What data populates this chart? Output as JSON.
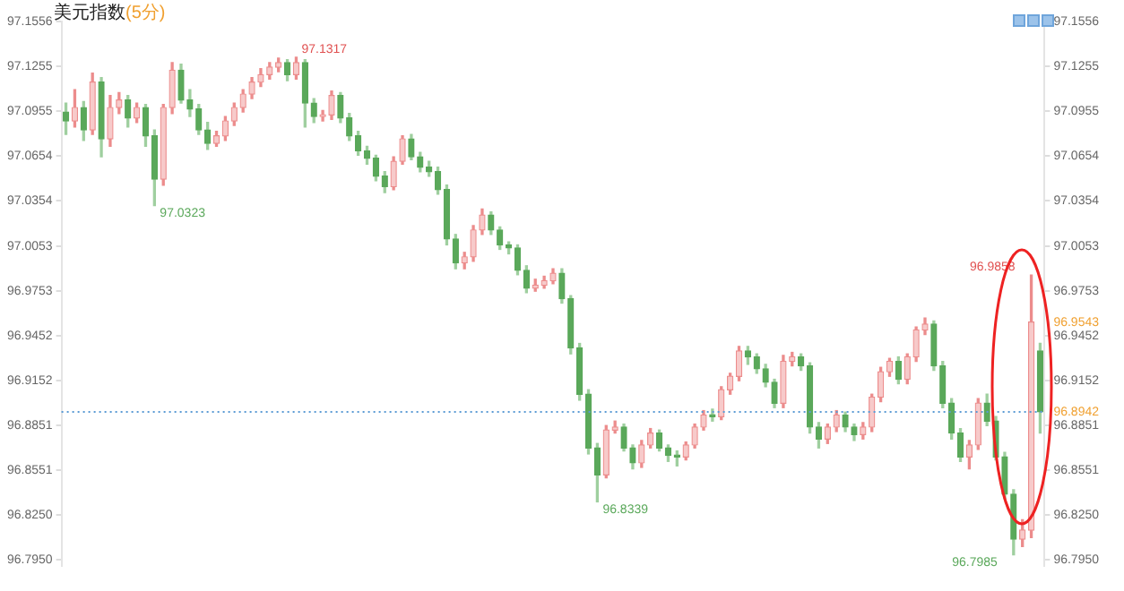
{
  "chart_data": {
    "type": "candlestick",
    "title": "美元指数",
    "subtitle": "(5分)",
    "categories": [
      null,
      null,
      null,
      null,
      null,
      null,
      null,
      null,
      null,
      null,
      null,
      null,
      null,
      null,
      null,
      null,
      null,
      null,
      null,
      null,
      null,
      null,
      null,
      null,
      null,
      null,
      null,
      null,
      null,
      null,
      null,
      null,
      null,
      null,
      null,
      null,
      null,
      null,
      null,
      null,
      null,
      null,
      null,
      null,
      null,
      null,
      null,
      null,
      null,
      null,
      null,
      null,
      null,
      null,
      null,
      null,
      null,
      null,
      null,
      null,
      null,
      null,
      null,
      null,
      null,
      null,
      null,
      null,
      null,
      null,
      null,
      null,
      null,
      null,
      null,
      null,
      null,
      null,
      null,
      null,
      null,
      null,
      null,
      null,
      null,
      null,
      null,
      null,
      null,
      null,
      null,
      null,
      null,
      null,
      null,
      null,
      null,
      null,
      null,
      null,
      null,
      null,
      null,
      null,
      null,
      null,
      null,
      null,
      null,
      null,
      null
    ],
    "ohlc": [
      [
        97.095,
        97.101,
        97.08,
        97.089
      ],
      [
        97.089,
        97.11,
        97.085,
        97.098
      ],
      [
        97.098,
        97.102,
        97.076,
        97.083
      ],
      [
        97.083,
        97.121,
        97.08,
        97.115
      ],
      [
        97.115,
        97.118,
        97.065,
        97.077
      ],
      [
        97.077,
        97.106,
        97.072,
        97.098
      ],
      [
        97.098,
        97.108,
        97.094,
        97.103
      ],
      [
        97.103,
        97.106,
        97.085,
        97.091
      ],
      [
        97.091,
        97.101,
        97.088,
        97.098
      ],
      [
        97.098,
        97.1,
        97.072,
        97.079
      ],
      [
        97.079,
        97.083,
        97.0323,
        97.05
      ],
      [
        97.05,
        97.1,
        97.046,
        97.098
      ],
      [
        97.098,
        97.128,
        97.094,
        97.123
      ],
      [
        97.123,
        97.127,
        97.101,
        97.103
      ],
      [
        97.103,
        97.11,
        97.092,
        97.097
      ],
      [
        97.097,
        97.1,
        97.08,
        97.083
      ],
      [
        97.083,
        97.088,
        97.07,
        97.074
      ],
      [
        97.074,
        97.082,
        97.072,
        97.079
      ],
      [
        97.079,
        97.092,
        97.076,
        97.089
      ],
      [
        97.089,
        97.101,
        97.086,
        97.098
      ],
      [
        97.098,
        97.11,
        97.095,
        97.107
      ],
      [
        97.107,
        97.118,
        97.104,
        97.115
      ],
      [
        97.115,
        97.124,
        97.112,
        97.12
      ],
      [
        97.12,
        97.128,
        97.117,
        97.125
      ],
      [
        97.125,
        97.131,
        97.122,
        97.128
      ],
      [
        97.128,
        97.13,
        97.116,
        97.12
      ],
      [
        97.12,
        97.1317,
        97.117,
        97.128
      ],
      [
        97.128,
        97.13,
        97.085,
        97.101
      ],
      [
        97.101,
        97.104,
        97.088,
        97.092
      ],
      [
        97.092,
        97.096,
        97.089,
        97.093
      ],
      [
        97.093,
        97.109,
        97.09,
        97.106
      ],
      [
        97.106,
        97.108,
        97.088,
        97.091
      ],
      [
        97.091,
        97.094,
        97.076,
        97.079
      ],
      [
        97.079,
        97.082,
        97.066,
        97.069
      ],
      [
        97.069,
        97.072,
        97.06,
        97.064
      ],
      [
        97.064,
        97.066,
        97.049,
        97.052
      ],
      [
        97.052,
        97.055,
        97.041,
        97.045
      ],
      [
        97.045,
        97.065,
        97.043,
        97.062
      ],
      [
        97.062,
        97.079,
        97.06,
        97.077
      ],
      [
        97.077,
        97.08,
        97.063,
        97.065
      ],
      [
        97.065,
        97.068,
        97.055,
        97.058
      ],
      [
        97.058,
        97.062,
        97.052,
        97.055
      ],
      [
        97.055,
        97.058,
        97.04,
        97.043
      ],
      [
        97.043,
        97.046,
        97.006,
        97.01
      ],
      [
        97.01,
        97.013,
        96.99,
        96.994
      ],
      [
        96.994,
        97.001,
        96.99,
        96.998
      ],
      [
        96.998,
        97.019,
        96.995,
        97.016
      ],
      [
        97.016,
        97.03,
        97.013,
        97.026
      ],
      [
        97.026,
        97.028,
        97.013,
        97.016
      ],
      [
        97.016,
        97.018,
        97.003,
        97.006
      ],
      [
        97.006,
        97.008,
        97.0,
        97.004
      ],
      [
        97.004,
        97.006,
        96.986,
        96.989
      ],
      [
        96.989,
        96.992,
        96.974,
        96.977
      ],
      [
        96.977,
        96.983,
        96.975,
        96.979
      ],
      [
        96.979,
        96.985,
        96.977,
        96.982
      ],
      [
        96.982,
        96.99,
        96.98,
        96.987
      ],
      [
        96.987,
        96.99,
        96.967,
        96.97
      ],
      [
        96.97,
        96.972,
        96.933,
        96.937
      ],
      [
        96.937,
        96.94,
        96.902,
        96.906
      ],
      [
        96.906,
        96.909,
        96.866,
        96.87
      ],
      [
        96.87,
        96.873,
        96.8339,
        96.852
      ],
      [
        96.852,
        96.885,
        96.85,
        96.882
      ],
      [
        96.882,
        96.888,
        96.88,
        96.884
      ],
      [
        96.884,
        96.886,
        96.868,
        96.87
      ],
      [
        96.87,
        96.872,
        96.856,
        96.86
      ],
      [
        96.86,
        96.875,
        96.857,
        96.872
      ],
      [
        96.872,
        96.883,
        96.87,
        96.88
      ],
      [
        96.88,
        96.882,
        96.868,
        96.87
      ],
      [
        96.87,
        96.872,
        96.861,
        96.865
      ],
      [
        96.865,
        96.868,
        96.858,
        96.864
      ],
      [
        96.864,
        96.874,
        96.862,
        96.872
      ],
      [
        96.872,
        96.886,
        96.87,
        96.884
      ],
      [
        96.884,
        96.895,
        96.882,
        96.892
      ],
      [
        96.892,
        96.896,
        96.888,
        96.891
      ],
      [
        96.891,
        96.911,
        96.889,
        96.909
      ],
      [
        96.909,
        96.92,
        96.906,
        96.918
      ],
      [
        96.918,
        96.938,
        96.915,
        96.935
      ],
      [
        96.935,
        96.938,
        96.926,
        96.931
      ],
      [
        96.931,
        96.933,
        96.92,
        96.923
      ],
      [
        96.923,
        96.926,
        96.911,
        96.914
      ],
      [
        96.914,
        96.916,
        96.897,
        96.9
      ],
      [
        96.9,
        96.932,
        96.897,
        96.928
      ],
      [
        96.928,
        96.934,
        96.925,
        96.931
      ],
      [
        96.931,
        96.933,
        96.922,
        96.925
      ],
      [
        96.925,
        96.927,
        96.88,
        96.884
      ],
      [
        96.884,
        96.887,
        96.87,
        96.876
      ],
      [
        96.876,
        96.886,
        96.873,
        96.884
      ],
      [
        96.884,
        96.895,
        96.881,
        96.892
      ],
      [
        96.892,
        96.894,
        96.881,
        96.884
      ],
      [
        96.884,
        96.886,
        96.875,
        96.879
      ],
      [
        96.879,
        96.887,
        96.876,
        96.884
      ],
      [
        96.884,
        96.906,
        96.881,
        96.904
      ],
      [
        96.904,
        96.924,
        96.901,
        96.921
      ],
      [
        96.921,
        96.93,
        96.918,
        96.928
      ],
      [
        96.928,
        96.931,
        96.913,
        96.916
      ],
      [
        96.916,
        96.933,
        96.913,
        96.931
      ],
      [
        96.931,
        96.951,
        96.928,
        96.949
      ],
      [
        96.949,
        96.957,
        96.946,
        96.953
      ],
      [
        96.953,
        96.955,
        96.922,
        96.925
      ],
      [
        96.925,
        96.928,
        96.897,
        96.9
      ],
      [
        96.9,
        96.903,
        96.876,
        96.88
      ],
      [
        96.88,
        96.883,
        96.861,
        96.864
      ],
      [
        96.864,
        96.875,
        96.856,
        96.872
      ],
      [
        96.872,
        96.903,
        96.869,
        96.9
      ],
      [
        96.9,
        96.906,
        96.885,
        96.888
      ],
      [
        96.888,
        96.891,
        96.862,
        96.864
      ],
      [
        96.864,
        96.867,
        96.836,
        96.839
      ],
      [
        96.839,
        96.842,
        96.7985,
        96.809
      ],
      [
        96.809,
        96.822,
        96.804,
        96.815
      ],
      [
        96.815,
        96.9858,
        96.81,
        96.9543
      ],
      [
        96.935,
        96.94,
        96.88,
        96.8942
      ]
    ],
    "ylim": [
      96.791,
      97.1556
    ],
    "yticks": [
      97.1556,
      97.1255,
      97.0955,
      97.0654,
      97.0354,
      97.0053,
      96.9753,
      96.9452,
      96.9152,
      96.8851,
      96.8551,
      {
        "value": 96.825,
        "label": "96.8250"
      },
      {
        "value": 96.795,
        "label": "96.7950"
      }
    ],
    "y2lim": [
      96.791,
      97.1556
    ],
    "y2ticks": [
      97.1556,
      97.1255,
      97.0955,
      97.0654,
      97.0354,
      97.0053,
      96.9753,
      96.9452,
      96.9152,
      96.8851,
      96.8551,
      {
        "value": 96.825,
        "label": "96.8250"
      },
      {
        "value": 96.795,
        "label": "96.7950"
      }
    ],
    "ref_lines": [
      {
        "axis": "y",
        "value": 96.8942,
        "label": "96.8942",
        "color": "#5b9bd5",
        "line_style": "dotted"
      }
    ],
    "annotations": [
      "97.1317",
      "97.0323",
      "96.8339",
      "96.7985",
      "96.9858",
      "96.9543"
    ],
    "tick_labels": "y"
  }
}
